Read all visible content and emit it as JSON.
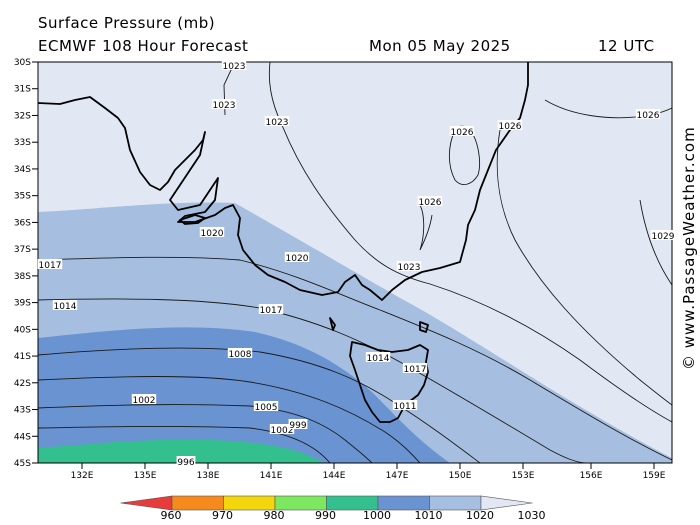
{
  "header": {
    "title": "Surface Pressure (mb)",
    "model": "ECMWF 108 Hour Forecast",
    "date": "Mon 05 May 2025",
    "utc": "12 UTC"
  },
  "credit": "© www.PassageWeather.com",
  "map": {
    "lat_labels": [
      "30S",
      "31S",
      "32S",
      "33S",
      "34S",
      "35S",
      "36S",
      "37S",
      "38S",
      "39S",
      "40S",
      "41S",
      "42S",
      "43S",
      "44S",
      "45S"
    ],
    "lon_labels": [
      "132E",
      "135E",
      "138E",
      "141E",
      "144E",
      "147E",
      "150E",
      "153E",
      "156E",
      "159E"
    ],
    "isobar_labels": [
      "1023",
      "1023",
      "1023",
      "1026",
      "1026",
      "1026",
      "1026",
      "1029",
      "1020",
      "1020",
      "1023",
      "1017",
      "1014",
      "1017",
      "1017",
      "1014",
      "1011",
      "1008",
      "1005",
      "1002",
      "1002",
      "999",
      "996"
    ],
    "fill_colors": {
      "gt1020": "#e1e8f4",
      "b1010_1020": "#a6bfe0",
      "b1000_1010": "#6a93d2",
      "b990_1000": "#33c08e"
    }
  },
  "colorbar": {
    "ticks": [
      "960",
      "970",
      "980",
      "990",
      "1000",
      "1010",
      "1020",
      "1030"
    ],
    "colors": [
      "#e83c3c",
      "#f58b1d",
      "#f3d70c",
      "#7de75f",
      "#33c08e",
      "#6a93d2",
      "#a6bfe0",
      "#e1e8f4"
    ]
  }
}
